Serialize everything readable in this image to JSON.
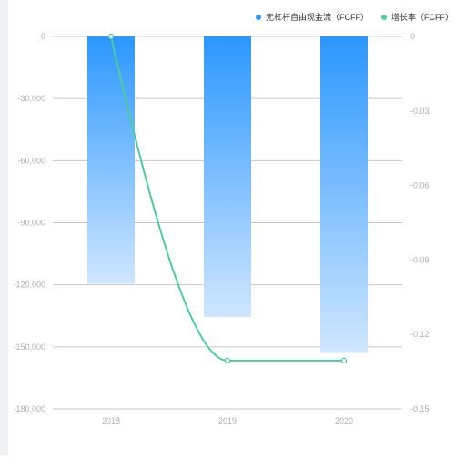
{
  "chart_data": {
    "type": "bar",
    "categories": [
      "2018",
      "2019",
      "2020"
    ],
    "series": [
      {
        "name": "无杠杆自由现金流（FCFF）",
        "type": "bar",
        "axis": "left",
        "values": [
          -119500,
          -135500,
          -152500
        ],
        "color": "#2b97ff",
        "color_light": "#cfe6ff"
      },
      {
        "name": "增长率（FCFF）",
        "type": "line",
        "axis": "right",
        "values": [
          0,
          -0.1305,
          -0.1305
        ],
        "color": "#4ecb9f"
      }
    ],
    "y_left": {
      "min": -180000,
      "max": 0,
      "ticks": [
        0,
        -30000,
        -60000,
        -90000,
        -120000,
        -150000,
        -180000
      ],
      "tick_labels": [
        "0",
        "-30,000",
        "-60,000",
        "-90,000",
        "-120,000",
        "-150,000",
        "-180,000"
      ]
    },
    "y_right": {
      "min": -0.15,
      "max": 0,
      "ticks": [
        0,
        -0.03,
        -0.06,
        -0.09,
        -0.12,
        -0.15
      ],
      "tick_labels": [
        "0",
        "-0.03",
        "-0.06",
        "-0.09",
        "-0.12",
        "-0.15"
      ]
    },
    "grid": true,
    "legend_position": "top-right",
    "axis_label_color": "#b0b0b0",
    "grid_color": "#c8c8c8"
  }
}
